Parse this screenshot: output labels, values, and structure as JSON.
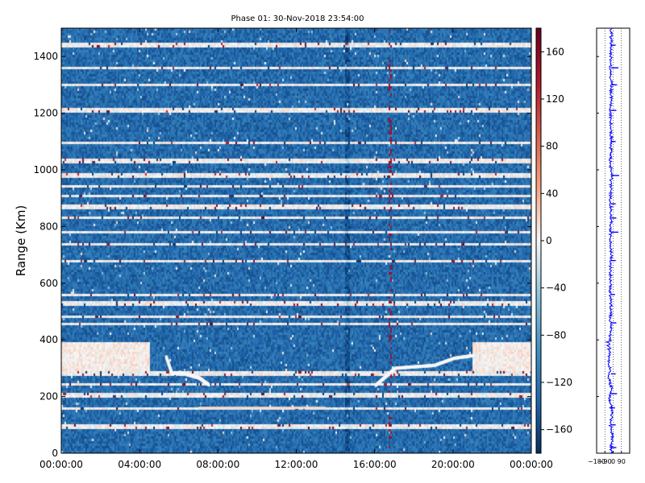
{
  "chart_data": [
    {
      "type": "heatmap",
      "title": "Phase 01: 30-Nov-2018 23:54:00",
      "xlabel": "",
      "ylabel": "Range (Km)",
      "x_ticks": [
        "00:00:00",
        "04:00:00",
        "08:00:00",
        "12:00:00",
        "16:00:00",
        "20:00:00",
        "00:00:00"
      ],
      "xlim_hours": [
        0,
        24
      ],
      "y_ticks": [
        0,
        200,
        400,
        600,
        800,
        1000,
        1200,
        1400
      ],
      "ylim": [
        0,
        1500
      ],
      "colorbar": {
        "ticks": [
          160,
          120,
          80,
          40,
          0,
          -40,
          -80,
          -120,
          -160
        ],
        "range": [
          -180,
          180
        ],
        "colormap": "RdBu_r",
        "low_color": "#08306b",
        "mid_color": "#f7f7f7",
        "high_color": "#67000d"
      },
      "background_value": -130,
      "bright_bands_km": [
        95,
        160,
        205,
        245,
        280,
        455,
        480,
        530,
        560,
        680,
        735,
        780,
        830,
        870,
        910,
        940,
        980,
        1030,
        1095,
        1210,
        1300,
        1360,
        1440
      ],
      "saturated_region": {
        "range_km": [
          290,
          390
        ],
        "hours": [
          [
            0,
            4.5
          ],
          [
            21,
            24
          ]
        ],
        "value": 0
      },
      "features": [
        {
          "type": "ridge",
          "points": [
            [
              5.3,
              340
            ],
            [
              5.6,
              280
            ],
            [
              6.0,
              285
            ],
            [
              6.5,
              275
            ],
            [
              7.0,
              265
            ],
            [
              7.5,
              240
            ]
          ]
        },
        {
          "type": "ridge",
          "points": [
            [
              16.0,
              240
            ],
            [
              16.5,
              270
            ],
            [
              17.0,
              300
            ],
            [
              18.0,
              305
            ],
            [
              19.0,
              310
            ],
            [
              20.0,
              335
            ],
            [
              21.0,
              345
            ]
          ]
        },
        {
          "type": "line",
          "range_km": 160,
          "hours": [
            7.0,
            13.5
          ],
          "value": 15
        }
      ]
    },
    {
      "type": "line",
      "title": "",
      "x_ticks": [
        "−180",
        "−90",
        "0",
        "90"
      ],
      "xlim": [
        -180,
        180
      ],
      "ylim": [
        0,
        1500
      ],
      "series_color": "#0000ff",
      "profile": [
        [
          0,
          -20
        ],
        [
          30,
          -25
        ],
        [
          60,
          -10
        ],
        [
          100,
          -30
        ],
        [
          140,
          -15
        ],
        [
          170,
          -25
        ],
        [
          200,
          -40
        ],
        [
          230,
          -20
        ],
        [
          260,
          -45
        ],
        [
          300,
          -35
        ],
        [
          330,
          -50
        ],
        [
          360,
          -30
        ],
        [
          380,
          -60
        ],
        [
          400,
          -40
        ],
        [
          440,
          -25
        ],
        [
          480,
          -30
        ],
        [
          520,
          -20
        ],
        [
          560,
          -35
        ],
        [
          600,
          -25
        ],
        [
          650,
          -30
        ],
        [
          700,
          -20
        ],
        [
          750,
          -30
        ],
        [
          800,
          -25
        ],
        [
          850,
          -20
        ],
        [
          900,
          -30
        ],
        [
          940,
          -25
        ],
        [
          980,
          -20
        ],
        [
          1030,
          -30
        ],
        [
          1080,
          -25
        ],
        [
          1150,
          -20
        ],
        [
          1200,
          -30
        ],
        [
          1250,
          -25
        ],
        [
          1300,
          -20
        ],
        [
          1360,
          -30
        ],
        [
          1400,
          -25
        ],
        [
          1450,
          -20
        ],
        [
          1500,
          -25
        ]
      ],
      "spikes": [
        [
          20,
          40
        ],
        [
          100,
          35
        ],
        [
          160,
          30
        ],
        [
          210,
          45
        ],
        [
          280,
          35
        ],
        [
          460,
          40
        ],
        [
          560,
          30
        ],
        [
          680,
          35
        ],
        [
          780,
          55
        ],
        [
          830,
          40
        ],
        [
          880,
          35
        ],
        [
          980,
          60
        ],
        [
          1100,
          35
        ],
        [
          1210,
          40
        ],
        [
          1300,
          45
        ],
        [
          1360,
          55
        ],
        [
          1440,
          35
        ]
      ]
    }
  ]
}
